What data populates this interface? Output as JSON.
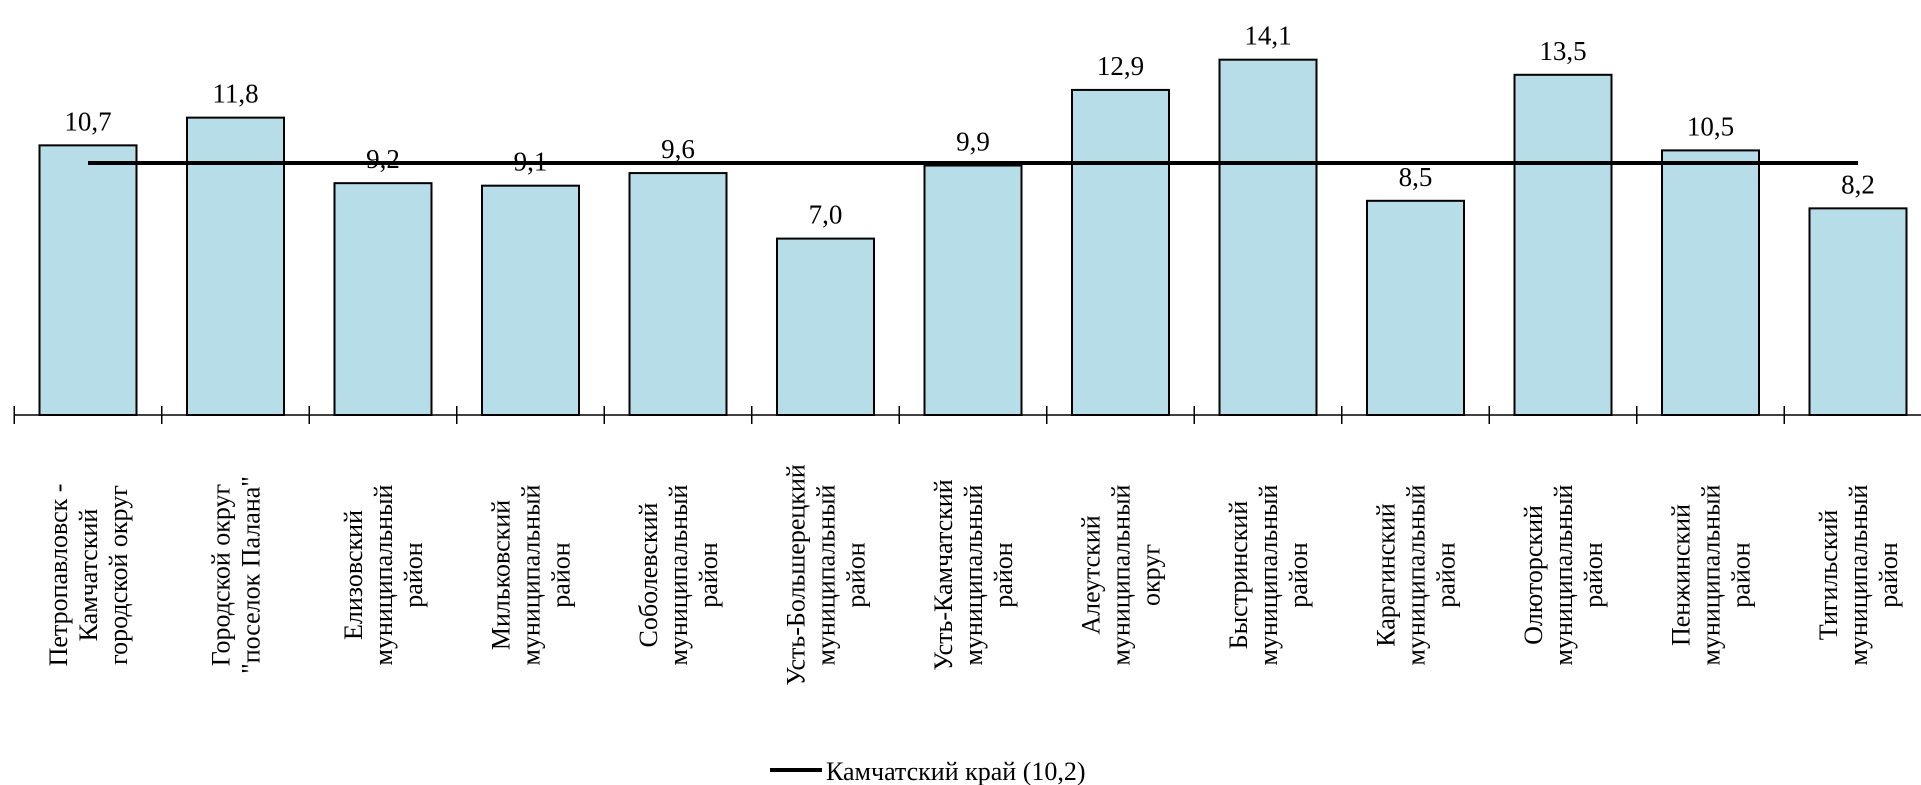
{
  "chart_data": {
    "type": "bar",
    "categories": [
      [
        "Петропавловск -",
        "Камчатский",
        "городской округ"
      ],
      [
        "Городской округ",
        "\"поселок Палана\""
      ],
      [
        "Елизовский",
        "муниципальный",
        "район"
      ],
      [
        "Мильковский",
        "муниципальный",
        "район"
      ],
      [
        "Соболевский",
        "муниципальный",
        "район"
      ],
      [
        "Усть-Большерецкий",
        "муниципальный",
        "район"
      ],
      [
        "Усть-Камчатский",
        "муниципальный",
        "район"
      ],
      [
        "Алеутский",
        "муниципальный",
        "округ"
      ],
      [
        "Быстринский",
        "муниципальный",
        "район"
      ],
      [
        "Карагинский",
        "муниципальный",
        "район"
      ],
      [
        "Олюторский",
        "муниципальный",
        "район"
      ],
      [
        "Пенжинский",
        "муниципальный",
        "район"
      ],
      [
        "Тигильский",
        "муниципальный",
        "район"
      ]
    ],
    "values": [
      10.7,
      11.8,
      9.2,
      9.1,
      9.6,
      7.0,
      9.9,
      12.9,
      14.1,
      8.5,
      13.5,
      10.5,
      8.2
    ],
    "value_labels": [
      "10,7",
      "11,8",
      "9,2",
      "9,1",
      "9,6",
      "7,0",
      "9,9",
      "12,9",
      "14,1",
      "8,5",
      "13,5",
      "10,5",
      "8,2"
    ],
    "reference_line": {
      "name": "Камчатский край (10,2)",
      "value": 10.2,
      "color": "#000000"
    },
    "bar_color": "#b7dde8",
    "bar_stroke": "#000000",
    "ylim": [
      0,
      15.5
    ],
    "grid": false,
    "legend_position": "bottom-center",
    "title": "",
    "xlabel": "",
    "ylabel": ""
  }
}
